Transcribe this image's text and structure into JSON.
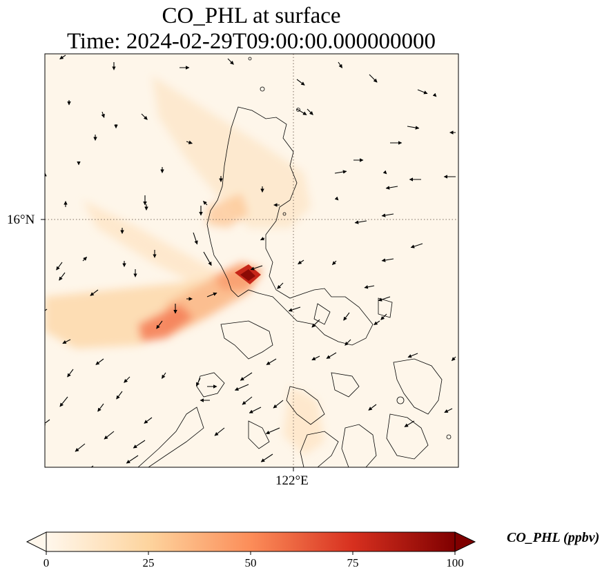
{
  "title": {
    "line1": "CO_PHL at surface",
    "line2": "Time: 2024-02-29T09:00:00.000000000"
  },
  "axes": {
    "lat_label": "16°N",
    "lon_label": "122°E"
  },
  "colorbar": {
    "label": "CO_PHL (ppbv)",
    "ticks": [
      "0",
      "25",
      "50",
      "75",
      "100"
    ],
    "min": 0,
    "max": 100,
    "extend": "both",
    "colormap": "OrRd",
    "colors": [
      "#fff7ec",
      "#fdd49e",
      "#fc8d59",
      "#d7301f",
      "#7f0000"
    ]
  },
  "map": {
    "type": "heatmap",
    "field": "CO_PHL",
    "units": "ppbv",
    "gridlines": "dotted",
    "wind_vectors": true
  }
}
